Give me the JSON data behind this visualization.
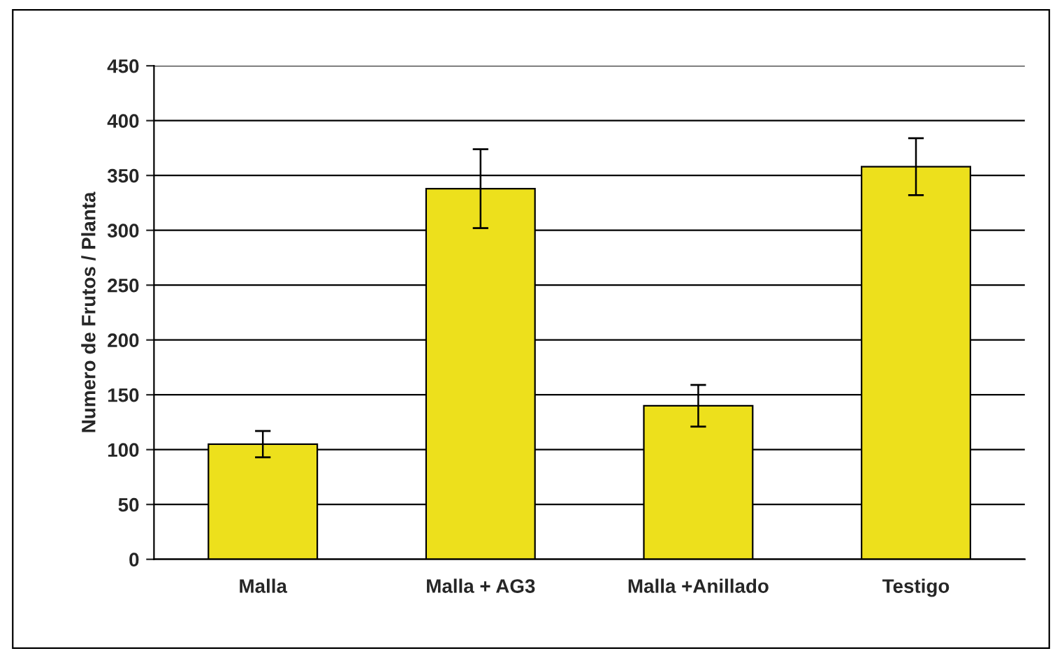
{
  "chart_data": {
    "type": "bar",
    "ylabel": "Numero de Frutos / Planta",
    "categories": [
      "Malla",
      "Malla + AG3",
      "Malla +Anillado",
      "Testigo"
    ],
    "values": [
      105,
      338,
      140,
      358
    ],
    "errors": [
      12,
      36,
      19,
      26
    ],
    "color": "#ede01c",
    "ylim": [
      0,
      450
    ],
    "yticks": [
      0,
      50,
      100,
      150,
      200,
      250,
      300,
      350,
      400,
      450
    ],
    "grid": "y"
  }
}
